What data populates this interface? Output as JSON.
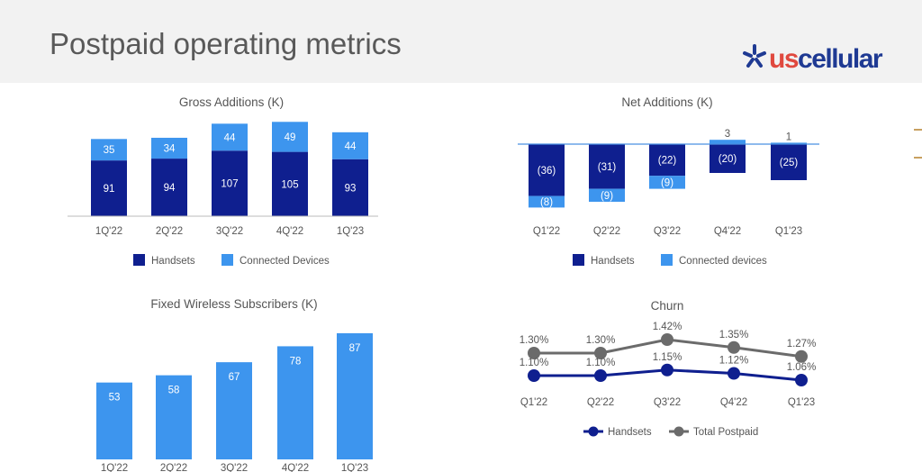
{
  "header": {
    "title": "Postpaid operating metrics",
    "logo_text": {
      "us": "us",
      "cellular": "cellular"
    }
  },
  "colors": {
    "dark_blue": "#0f1f8f",
    "light_blue": "#3d95ee",
    "gray": "#6b6b6b",
    "accent_orange": "#c8a060"
  },
  "chart_data": [
    {
      "type": "bar",
      "stacked": true,
      "title": "Gross Additions (K)",
      "categories": [
        "1Q'22",
        "2Q'22",
        "3Q'22",
        "4Q'22",
        "1Q'23"
      ],
      "series": [
        {
          "name": "Handsets",
          "values": [
            91,
            94,
            107,
            105,
            93
          ],
          "labels": [
            "91",
            "94",
            "107",
            "105",
            "93"
          ]
        },
        {
          "name": "Connected Devices",
          "values": [
            35,
            34,
            44,
            49,
            44
          ],
          "labels": [
            "35",
            "34",
            "44",
            "49",
            "44"
          ]
        }
      ],
      "legend": "bottom"
    },
    {
      "type": "bar",
      "stacked": true,
      "title": "Net Additions (K)",
      "categories": [
        "Q1'22",
        "Q2'22",
        "Q3'22",
        "Q4'22",
        "Q1'23"
      ],
      "series": [
        {
          "name": "Handsets",
          "values": [
            -36,
            -31,
            -22,
            -20,
            -25
          ],
          "labels": [
            "(36)",
            "(31)",
            "(22)",
            "(20)",
            "(25)"
          ]
        },
        {
          "name": "Connected devices",
          "values": [
            -8,
            -9,
            -9,
            3,
            1
          ],
          "labels": [
            "(8)",
            "(9)",
            "(9)",
            "3",
            "1"
          ]
        }
      ],
      "legend": "bottom"
    },
    {
      "type": "bar",
      "title": "Fixed Wireless Subscribers (K)",
      "categories": [
        "1Q'22",
        "2Q'22",
        "3Q'22",
        "4Q'22",
        "1Q'23"
      ],
      "values": [
        53,
        58,
        67,
        78,
        87
      ],
      "labels": [
        "53",
        "58",
        "67",
        "78",
        "87"
      ]
    },
    {
      "type": "line",
      "title": "Churn",
      "categories": [
        "Q1'22",
        "Q2'22",
        "Q3'22",
        "Q4'22",
        "Q1'23"
      ],
      "series": [
        {
          "name": "Handsets",
          "values": [
            1.1,
            1.1,
            1.15,
            1.12,
            1.06
          ],
          "labels": [
            "1.10%",
            "1.10%",
            "1.15%",
            "1.12%",
            "1.06%"
          ]
        },
        {
          "name": "Total Postpaid",
          "values": [
            1.3,
            1.3,
            1.42,
            1.35,
            1.27
          ],
          "labels": [
            "1.30%",
            "1.30%",
            "1.42%",
            "1.35%",
            "1.27%"
          ]
        }
      ],
      "legend": "bottom"
    }
  ]
}
